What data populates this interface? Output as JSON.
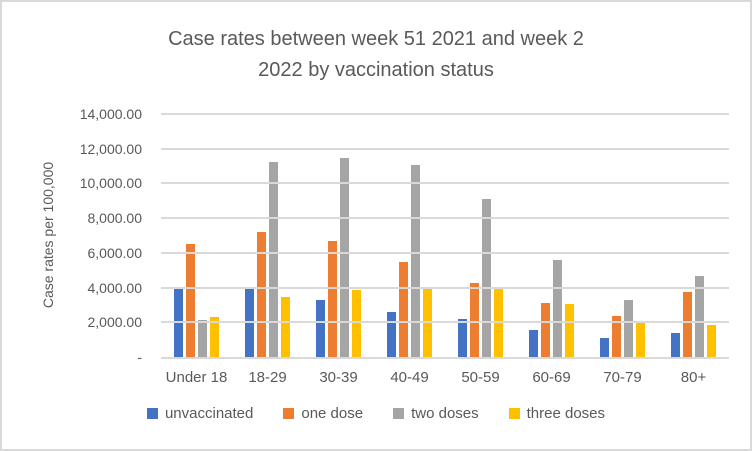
{
  "colors": {
    "text": "#595959",
    "gridline": "#D9D9D9",
    "axis_line": "#D9D9D9",
    "frame_border": "#D9D9D9",
    "background": "#FFFFFF"
  },
  "header": {
    "title_line1": "Case rates between week 51 2021 and week 2",
    "title_line2": "2022 by vaccination status"
  },
  "chart_data": {
    "type": "bar",
    "title": "Case rates between week 51 2021 and week 2 2022 by vaccination status",
    "xlabel": "",
    "ylabel": "Case rates per 100,000",
    "ylim": [
      0,
      14000
    ],
    "grid": true,
    "legend_position": "bottom",
    "categories": [
      "Under 18",
      "18-29",
      "30-39",
      "40-49",
      "50-59",
      "60-69",
      "70-79",
      "80+"
    ],
    "series": [
      {
        "name": "unvaccinated",
        "color": "#4472C4",
        "values": [
          4050,
          3900,
          3300,
          2600,
          2200,
          1570,
          1110,
          1400
        ]
      },
      {
        "name": "one dose",
        "color": "#ED7D31",
        "values": [
          6500,
          7200,
          6700,
          5500,
          4280,
          3100,
          2360,
          3740
        ]
      },
      {
        "name": "two doses",
        "color": "#A5A5A5",
        "values": [
          2150,
          11250,
          11450,
          11050,
          9100,
          5570,
          3270,
          4670
        ]
      },
      {
        "name": "three doses",
        "color": "#FFC000",
        "values": [
          2300,
          3450,
          3880,
          4030,
          3960,
          3070,
          2070,
          1860
        ]
      }
    ],
    "y_ticks": [
      {
        "label": "14,000.00",
        "value": 14000
      },
      {
        "label": "12,000.00",
        "value": 12000
      },
      {
        "label": "10,000.00",
        "value": 10000
      },
      {
        "label": "8,000.00",
        "value": 8000
      },
      {
        "label": "6,000.00",
        "value": 6000
      },
      {
        "label": "4,000.00",
        "value": 4000
      },
      {
        "label": "2,000.00",
        "value": 2000
      },
      {
        "label": "-",
        "value": 0
      }
    ]
  }
}
